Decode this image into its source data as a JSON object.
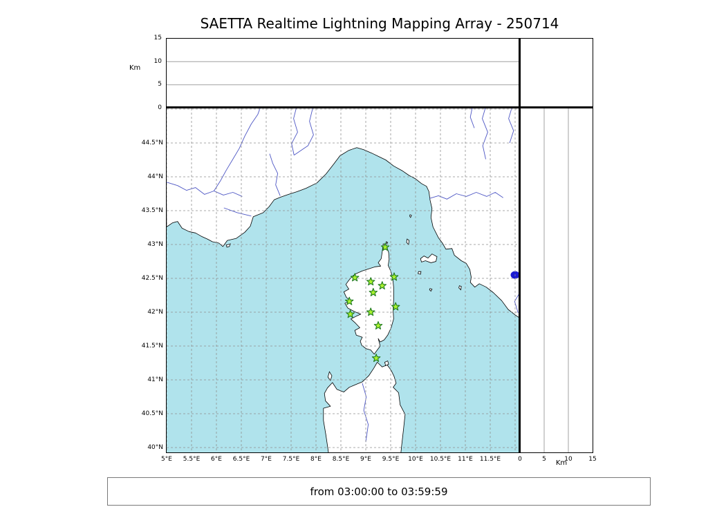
{
  "title": "SAETTA Realtime Lightning Mapping Array - 250714",
  "footer": {
    "text": "from 03:00:00 to 03:59:59"
  },
  "colors": {
    "sea": "#b0e3ec",
    "land": "#ffffff",
    "coastline": "#000000",
    "grid_map": "#8f8f8f",
    "grid_panel": "#a0a0a0",
    "river": "#4c55c4",
    "lake": "#1a1ad1",
    "station_fill": "#aaf22f",
    "station_stroke": "#1e7a1e"
  },
  "chart_data": {
    "type": "scatter",
    "title": "SAETTA Realtime Lightning Mapping Array - 250714",
    "time_window": "from 03:00:00 to 03:59:59",
    "map_panel": {
      "lon_range_deg_e": [
        5.0,
        12.1
      ],
      "lat_range_deg_n": [
        39.93,
        45.02
      ],
      "lon_ticks": [
        5,
        5.5,
        6,
        6.5,
        7,
        7.5,
        8,
        8.5,
        9,
        9.5,
        10,
        10.5,
        11,
        11.5
      ],
      "lon_tick_labels": [
        "5°E",
        "5.5°E",
        "6°E",
        "6.5°E",
        "7°E",
        "7.5°E",
        "8°E",
        "8.5°E",
        "9°E",
        "9.5°E",
        "10°E",
        "10.5°E",
        "11°E",
        "11.5°E"
      ],
      "lat_ticks": [
        40,
        40.5,
        41,
        41.5,
        42,
        42.5,
        43,
        43.5,
        44,
        44.5
      ],
      "lat_tick_labels": [
        "40°N",
        "40.5°N",
        "41°N",
        "41.5°N",
        "42°N",
        "42.5°N",
        "43°N",
        "43.5°N",
        "44°N",
        "44.5°N"
      ],
      "grid": "dashed"
    },
    "altitude_top_panel": {
      "axis_label": "Km",
      "ticks": [
        0,
        5,
        10,
        15
      ],
      "tick_labels": [
        "0",
        "5",
        "10",
        "15"
      ],
      "range_km": [
        0,
        15
      ],
      "gridlines_km": [
        5,
        10
      ],
      "points": []
    },
    "altitude_right_panel": {
      "axis_label": "Km",
      "ticks": [
        0,
        5,
        10,
        15
      ],
      "tick_labels": [
        "0",
        "5",
        "10",
        "15"
      ],
      "range_km": [
        0,
        15
      ],
      "gridlines_km": [
        5,
        10
      ],
      "points": []
    },
    "station_marker": "green-star",
    "stations": [
      {
        "lon": 9.39,
        "lat": 42.96
      },
      {
        "lon": 8.78,
        "lat": 42.51
      },
      {
        "lon": 9.1,
        "lat": 42.45
      },
      {
        "lon": 9.57,
        "lat": 42.52
      },
      {
        "lon": 9.33,
        "lat": 42.39
      },
      {
        "lon": 9.15,
        "lat": 42.29
      },
      {
        "lon": 8.67,
        "lat": 42.16
      },
      {
        "lon": 9.6,
        "lat": 42.08
      },
      {
        "lon": 8.69,
        "lat": 41.97
      },
      {
        "lon": 9.1,
        "lat": 42.0
      },
      {
        "lon": 9.25,
        "lat": 41.8
      },
      {
        "lon": 9.21,
        "lat": 41.32
      }
    ],
    "lightning_sources": []
  }
}
